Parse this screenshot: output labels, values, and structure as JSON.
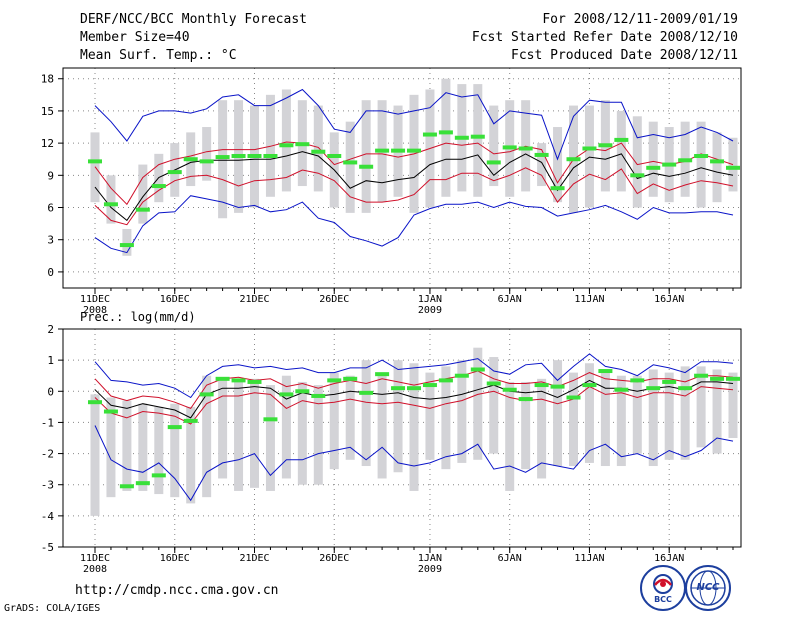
{
  "header": {
    "title": "DERF/NCC/BCC Monthly Forecast",
    "member_size": "Member Size=40",
    "variable": "Mean Surf. Temp.: °C",
    "for_range": "For 2008/12/11-2009/01/19",
    "fcst_started": "Fcst Started Refer Date 2008/12/10",
    "fcst_produced": "Fcst Produced Date 2008/12/11"
  },
  "footer": {
    "url": "http://cmdp.ncc.cma.gov.cn",
    "grads": "GrADS: COLA/IGES",
    "logo_bcc": "BCC",
    "logo_ncc": "NCC"
  },
  "colors": {
    "box": "#d3d3d7",
    "mean": "#000000",
    "spread": "#d0102a",
    "envelope": "#0a14c8",
    "obs": "#39e039",
    "grid": "#888888"
  },
  "chart_data": [
    {
      "type": "box",
      "title": "Mean Surf. Temp.: °C",
      "ylim": [
        -1.5,
        19
      ],
      "yticks": [
        0,
        3,
        6,
        9,
        12,
        15,
        18
      ],
      "xtick_labels": [
        {
          "day": 1,
          "label": "11DEC",
          "sub": "2008"
        },
        {
          "day": 6,
          "label": "16DEC",
          "sub": ""
        },
        {
          "day": 11,
          "label": "21DEC",
          "sub": ""
        },
        {
          "day": 16,
          "label": "26DEC",
          "sub": ""
        },
        {
          "day": 22,
          "label": "1JAN",
          "sub": "2009"
        },
        {
          "day": 27,
          "label": "6JAN",
          "sub": ""
        },
        {
          "day": 32,
          "label": "11JAN",
          "sub": ""
        },
        {
          "day": 37,
          "label": "16JAN",
          "sub": ""
        }
      ],
      "series": [
        {
          "name": "box_low",
          "values": [
            6.5,
            4.5,
            1.5,
            4.5,
            6.5,
            7,
            8,
            8.5,
            5,
            5.5,
            6,
            7,
            7.5,
            8,
            7.5,
            6,
            5.5,
            5.5,
            6.5,
            7,
            5.5,
            6,
            7,
            7.5,
            7,
            8,
            7,
            7.5,
            8,
            6.5,
            5.5,
            6,
            7.5,
            7.5,
            6,
            7,
            6.5,
            7,
            6,
            6.5,
            7.5
          ]
        },
        {
          "name": "box_high",
          "values": [
            13,
            9,
            4,
            10,
            11,
            12,
            13,
            13.5,
            16,
            16,
            15.5,
            16.5,
            17,
            16,
            15.5,
            13,
            14,
            16,
            16,
            15.5,
            16.5,
            17,
            18,
            17.5,
            17.5,
            15.5,
            16,
            16,
            12,
            13.5,
            15.5,
            15.5,
            16,
            15,
            14.5,
            14,
            13.5,
            14,
            14,
            13,
            12.5
          ]
        },
        {
          "name": "envelope_max",
          "values": [
            15.5,
            14,
            12.2,
            14.5,
            15,
            15,
            14.8,
            15.2,
            16.3,
            16.5,
            15.5,
            15.5,
            16.2,
            17,
            15.5,
            13.3,
            13,
            15,
            15,
            14.7,
            15,
            15.3,
            16.7,
            16.3,
            16.5,
            13.8,
            15,
            14.8,
            14.6,
            10.5,
            14.5,
            16,
            15.8,
            15.8,
            12.5,
            12.8,
            12.5,
            12.8,
            13.5,
            13,
            12.2
          ]
        },
        {
          "name": "spread_upper",
          "values": [
            9.8,
            7.8,
            6.3,
            8.8,
            10,
            10.5,
            10.8,
            11.2,
            11.4,
            11.4,
            11.4,
            11.7,
            12.1,
            12,
            11.6,
            10,
            10.5,
            11,
            11,
            10.7,
            11,
            11.5,
            12,
            11.8,
            12,
            11,
            11.2,
            11.7,
            11.4,
            8.3,
            10.5,
            11.5,
            11.3,
            12,
            10,
            10.3,
            10,
            10.3,
            11,
            10.5,
            10
          ]
        },
        {
          "name": "mean",
          "values": [
            7.9,
            6,
            4.8,
            7,
            8.8,
            9.5,
            10.2,
            10.4,
            10.4,
            10.4,
            10.5,
            10.5,
            10.8,
            11.2,
            10.8,
            9.5,
            7.8,
            8.5,
            8.3,
            8.6,
            8.8,
            10,
            10.5,
            10.5,
            10.9,
            9,
            10.2,
            11,
            10.2,
            7.6,
            9.7,
            10.7,
            10.5,
            11,
            8.7,
            9.2,
            8.9,
            9.2,
            9.7,
            9.3,
            9
          ]
        },
        {
          "name": "spread_lower",
          "values": [
            6.2,
            4.8,
            4.4,
            6.5,
            7.6,
            8.5,
            8.9,
            9,
            8.6,
            8,
            8.5,
            8.6,
            8.8,
            9.5,
            9.2,
            8.5,
            7,
            6.5,
            6.5,
            6.7,
            7.2,
            8.6,
            8.6,
            9.2,
            9.2,
            8.5,
            9,
            9.7,
            9,
            6.5,
            8.2,
            9.1,
            8.6,
            9.6,
            7.3,
            8.2,
            7.6,
            8.1,
            8.5,
            8.3,
            8
          ]
        },
        {
          "name": "envelope_min",
          "values": [
            3.2,
            2.2,
            1.8,
            4.3,
            5.5,
            5.6,
            7.1,
            6.8,
            6.5,
            6,
            6.2,
            5.6,
            5.8,
            6.5,
            5,
            4.6,
            3.3,
            2.9,
            2.4,
            3.2,
            5.3,
            5.9,
            6.3,
            6.3,
            6.5,
            6,
            6.5,
            6.1,
            6,
            5.2,
            5.5,
            5.8,
            6.2,
            5.6,
            4.9,
            6,
            5.5,
            5.5,
            5.6,
            5.6,
            5.3
          ]
        },
        {
          "name": "observed",
          "values": [
            10.3,
            6.3,
            2.5,
            5.8,
            8,
            9.3,
            10.5,
            10.3,
            10.7,
            10.8,
            10.8,
            10.8,
            11.8,
            11.9,
            11.2,
            10.8,
            10.2,
            9.8,
            11.3,
            11.3,
            11.3,
            12.8,
            13,
            12.5,
            12.6,
            10.2,
            11.6,
            11.5,
            10.9,
            7.8,
            10.5,
            11.5,
            11.8,
            12.3,
            9,
            9.7,
            10,
            10.4,
            10.8,
            10.3,
            9.7
          ]
        }
      ]
    },
    {
      "type": "box",
      "title": "Prec.: log(mm/d)",
      "ylim": [
        -5,
        2
      ],
      "yticks": [
        -5,
        -4,
        -3,
        -2,
        -1,
        0,
        1,
        2
      ],
      "xtick_labels": [
        {
          "day": 1,
          "label": "11DEC",
          "sub": "2008"
        },
        {
          "day": 6,
          "label": "16DEC",
          "sub": ""
        },
        {
          "day": 11,
          "label": "21DEC",
          "sub": ""
        },
        {
          "day": 16,
          "label": "26DEC",
          "sub": ""
        },
        {
          "day": 22,
          "label": "1JAN",
          "sub": "2009"
        },
        {
          "day": 27,
          "label": "6JAN",
          "sub": ""
        },
        {
          "day": 32,
          "label": "11JAN",
          "sub": ""
        },
        {
          "day": 37,
          "label": "16JAN",
          "sub": ""
        }
      ],
      "series": [
        {
          "name": "box_low",
          "values": [
            -4,
            -3.4,
            -3.2,
            -3.2,
            -3.3,
            -3.4,
            -3.6,
            -3.4,
            -2.8,
            -3.2,
            -3.1,
            -3.2,
            -2.8,
            -3,
            -3,
            -2.5,
            -2.2,
            -2.4,
            -2.8,
            -2.6,
            -3.2,
            -2.2,
            -2.5,
            -2.3,
            -2.2,
            -2,
            -3.2,
            -2.5,
            -2.8,
            -2.4,
            -2.4,
            -2.3,
            -2.4,
            -2.4,
            -2,
            -2.4,
            -2.2,
            -2.2,
            -1.8,
            -2,
            -1.5
          ]
        },
        {
          "name": "box_high",
          "values": [
            -0.1,
            -0.2,
            -0.3,
            -0.4,
            -0.5,
            -0.4,
            -0.5,
            0.5,
            0.4,
            0.3,
            0.4,
            0.2,
            0.5,
            0.3,
            0.2,
            0.6,
            0.5,
            1,
            0.6,
            1,
            0.9,
            0.6,
            0.8,
            1,
            1.4,
            1.1,
            0.3,
            0.3,
            0.4,
            1,
            0.6,
            0.9,
            0.7,
            0.5,
            0.5,
            0.7,
            0.6,
            0.8,
            0.8,
            0.7,
            0.6
          ]
        },
        {
          "name": "envelope_max",
          "values": [
            0.95,
            0.35,
            0.3,
            0.2,
            0.25,
            0.1,
            -0.2,
            0.5,
            0.8,
            0.85,
            0.75,
            0.8,
            0.7,
            0.75,
            0.6,
            0.6,
            0.75,
            0.75,
            1,
            0.7,
            0.75,
            0.8,
            0.85,
            0.95,
            1.05,
            0.65,
            0.55,
            0.85,
            0.9,
            0.35,
            0.8,
            1.2,
            0.8,
            0.7,
            0.5,
            0.85,
            0.75,
            0.6,
            0.95,
            0.95,
            0.9
          ]
        },
        {
          "name": "spread_upper",
          "values": [
            0.4,
            -0.15,
            -0.3,
            -0.15,
            -0.2,
            -0.35,
            -0.55,
            0.2,
            0.4,
            0.45,
            0.35,
            0.4,
            0.15,
            0.25,
            0.1,
            0.25,
            0.35,
            0.25,
            0.4,
            0.3,
            0.2,
            0.3,
            0.4,
            0.5,
            0.65,
            0.4,
            0.25,
            0.25,
            0.3,
            0.15,
            0.35,
            0.6,
            0.4,
            0.35,
            0.3,
            0.4,
            0.4,
            0.3,
            0.5,
            0.5,
            0.45
          ]
        },
        {
          "name": "mean",
          "values": [
            0.05,
            -0.45,
            -0.55,
            -0.4,
            -0.5,
            -0.6,
            -0.85,
            -0.1,
            0.1,
            0.1,
            0.15,
            0.1,
            -0.25,
            -0.05,
            -0.15,
            -0.1,
            0,
            -0.05,
            -0.1,
            -0.05,
            -0.2,
            -0.25,
            -0.2,
            -0.1,
            0.05,
            0.2,
            0,
            -0.05,
            0,
            -0.2,
            0.05,
            0.35,
            0.1,
            0.1,
            0,
            0.1,
            0.15,
            0.05,
            0.3,
            0.3,
            0.25
          ]
        },
        {
          "name": "spread_lower",
          "values": [
            -0.2,
            -0.7,
            -0.85,
            -0.65,
            -0.7,
            -0.8,
            -1.05,
            -0.4,
            -0.15,
            -0.15,
            -0.05,
            -0.1,
            -0.55,
            -0.3,
            -0.4,
            -0.35,
            -0.25,
            -0.35,
            -0.4,
            -0.35,
            -0.45,
            -0.55,
            -0.4,
            -0.3,
            -0.1,
            0,
            -0.2,
            -0.3,
            -0.25,
            -0.4,
            -0.25,
            0.15,
            -0.1,
            -0.05,
            -0.2,
            -0.05,
            -0.05,
            -0.15,
            0.15,
            0.1,
            0.05
          ]
        },
        {
          "name": "envelope_min",
          "values": [
            -1.1,
            -2.2,
            -2.5,
            -2.6,
            -2.3,
            -2.8,
            -3.5,
            -2.6,
            -2.3,
            -2.2,
            -2,
            -2.7,
            -2.2,
            -2.2,
            -2,
            -1.9,
            -1.8,
            -2.2,
            -1.8,
            -2.3,
            -2.4,
            -2.3,
            -2.1,
            -2,
            -1.7,
            -2.5,
            -2.4,
            -2.6,
            -2.3,
            -2.4,
            -2.5,
            -1.9,
            -1.7,
            -2.1,
            -2,
            -2.2,
            -1.9,
            -2.1,
            -1.9,
            -1.5,
            -1.6
          ]
        },
        {
          "name": "observed",
          "values": [
            -0.35,
            -0.65,
            -3.05,
            -2.95,
            -2.7,
            -1.15,
            -0.95,
            -0.1,
            0.4,
            0.35,
            0.3,
            -0.9,
            -0.1,
            0,
            -0.15,
            0.35,
            0.4,
            -0.05,
            0.55,
            0.1,
            0.1,
            0.2,
            0.35,
            0.5,
            0.7,
            0.25,
            0.05,
            -0.25,
            0.2,
            0.15,
            -0.2,
            0.2,
            0.65,
            0.05,
            0.35,
            0.1,
            0.3,
            0.1,
            0.5,
            0.4,
            0.4
          ]
        }
      ]
    }
  ]
}
